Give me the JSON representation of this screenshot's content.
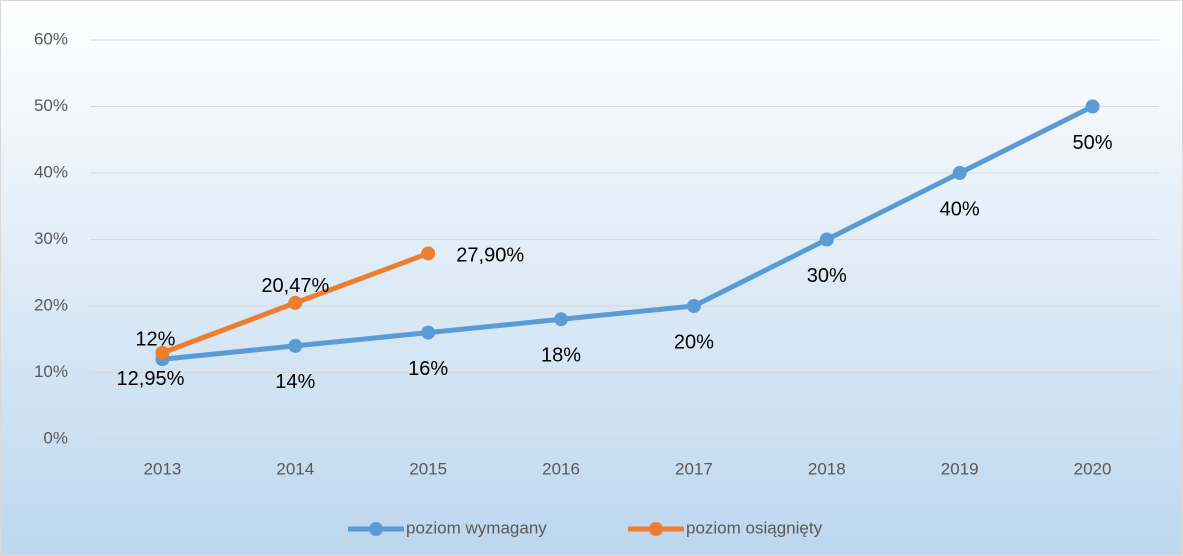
{
  "chart_data": {
    "type": "line",
    "categories": [
      "2013",
      "2014",
      "2015",
      "2016",
      "2017",
      "2018",
      "2019",
      "2020"
    ],
    "series": [
      {
        "name": "poziom wymagany",
        "color": "#5b9bd5",
        "values": [
          12,
          14,
          16,
          18,
          20,
          30,
          40,
          50
        ],
        "value_labels": [
          "12%",
          "14%",
          "16%",
          "18%",
          "20%",
          "30%",
          "40%",
          "50%"
        ]
      },
      {
        "name": "poziom osiągnięty",
        "color": "#ed7d31",
        "values": [
          12.95,
          20.47,
          27.9,
          null,
          null,
          null,
          null,
          null
        ],
        "value_labels": [
          "12,95%",
          "20,47%",
          "27,90%",
          null,
          null,
          null,
          null,
          null
        ]
      }
    ],
    "ylim": [
      0,
      60
    ],
    "yticks": [
      {
        "value": 0,
        "label": "0%"
      },
      {
        "value": 10,
        "label": "10%"
      },
      {
        "value": 20,
        "label": "20%"
      },
      {
        "value": 30,
        "label": "30%"
      },
      {
        "value": 40,
        "label": "40%"
      },
      {
        "value": 50,
        "label": "50%"
      },
      {
        "value": 60,
        "label": "60%"
      }
    ],
    "grid": true,
    "legend": "bottom"
  }
}
